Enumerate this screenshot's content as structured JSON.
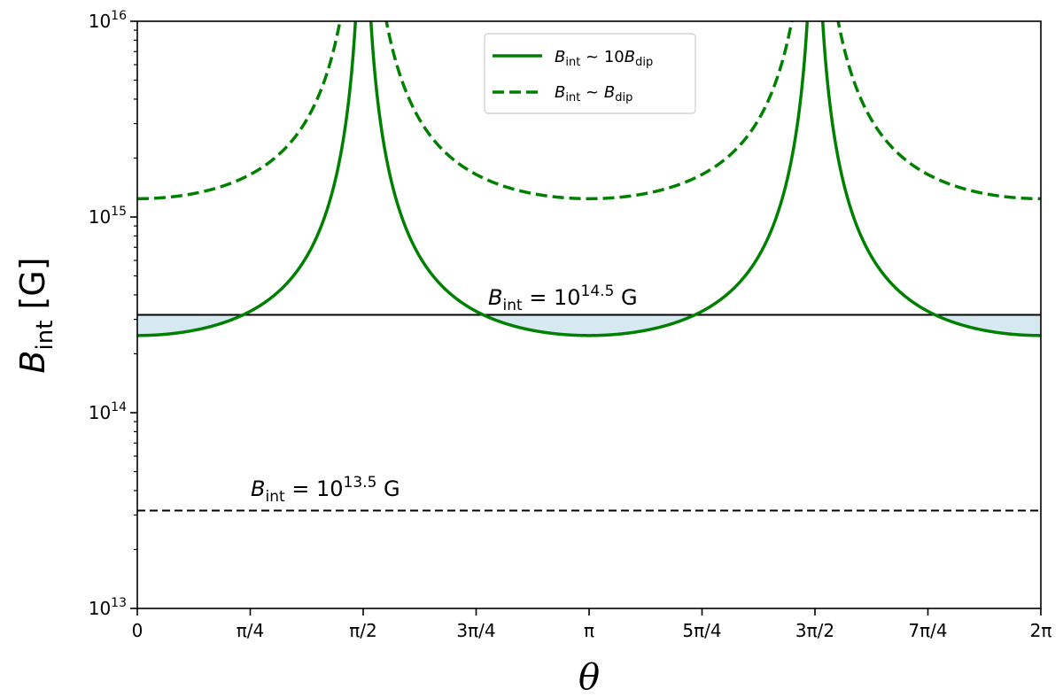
{
  "chart_data": {
    "type": "line",
    "title": "",
    "xlabel": "θ",
    "ylabel": "B_int [G]",
    "ylabel_parts": {
      "main": "B",
      "sub": "int",
      "unit": " [G]"
    },
    "xlim": [
      0,
      6.283185
    ],
    "ylim": [
      10000000000000.0,
      1e+16
    ],
    "yscale": "log",
    "grid": false,
    "legend_position": "top-center",
    "x_ticks": [
      {
        "value": 0,
        "label": "0"
      },
      {
        "value": 0.785398,
        "label": "π/4"
      },
      {
        "value": 1.570796,
        "label": "π/2"
      },
      {
        "value": 2.356194,
        "label": "3π/4"
      },
      {
        "value": 3.141593,
        "label": "π"
      },
      {
        "value": 3.926991,
        "label": "5π/4"
      },
      {
        "value": 4.712389,
        "label": "3π/2"
      },
      {
        "value": 5.497787,
        "label": "7π/4"
      },
      {
        "value": 6.283185,
        "label": "2π"
      }
    ],
    "y_ticks": [
      {
        "value": 10000000000000.0,
        "base": "10",
        "exp": "13"
      },
      {
        "value": 100000000000000.0,
        "base": "10",
        "exp": "14"
      },
      {
        "value": 1000000000000000.0,
        "base": "10",
        "exp": "15"
      },
      {
        "value": 1e+16,
        "base": "10",
        "exp": "16"
      }
    ],
    "series": [
      {
        "label_main": "B",
        "label_sub": "int",
        "label_mid": " ~ 10",
        "label_main2": "B",
        "label_sub2": "dip",
        "style": "solid",
        "color": "#008000",
        "coefficient": 124000000000000.0
      },
      {
        "label_main": "B",
        "label_sub": "int",
        "label_mid": " ~ ",
        "label_main2": "B",
        "label_sub2": "dip",
        "style": "dashed",
        "color": "#008000",
        "coefficient": 620000000000000.0
      }
    ],
    "series_formula": "B = coefficient * (3cos²θ+1)^(1/2) / |cos θ|^(3/2), approx.; values in G",
    "reference_lines": [
      {
        "value": 316230000000000.0,
        "style": "solid",
        "color": "#000000",
        "label_main": "B",
        "label_sub": "int",
        "label_mid": " = 10",
        "label_exp": "14.5",
        "label_unit": " G"
      },
      {
        "value": 31623000000000.0,
        "style": "dashed",
        "color": "#000000",
        "label_main": "B",
        "label_sub": "int",
        "label_mid": " = 10",
        "label_exp": "13.5",
        "label_unit": " G"
      }
    ],
    "shaded_regions": [
      {
        "between": [
          31623000000000.0,
          316230000000000.0
        ],
        "color": "#d6e9f1",
        "note": "between the two curves"
      },
      {
        "between": [
          10000000000000.0,
          31623000000000.0
        ],
        "color": "#e6f2e2",
        "note": "between the two curves"
      }
    ]
  }
}
